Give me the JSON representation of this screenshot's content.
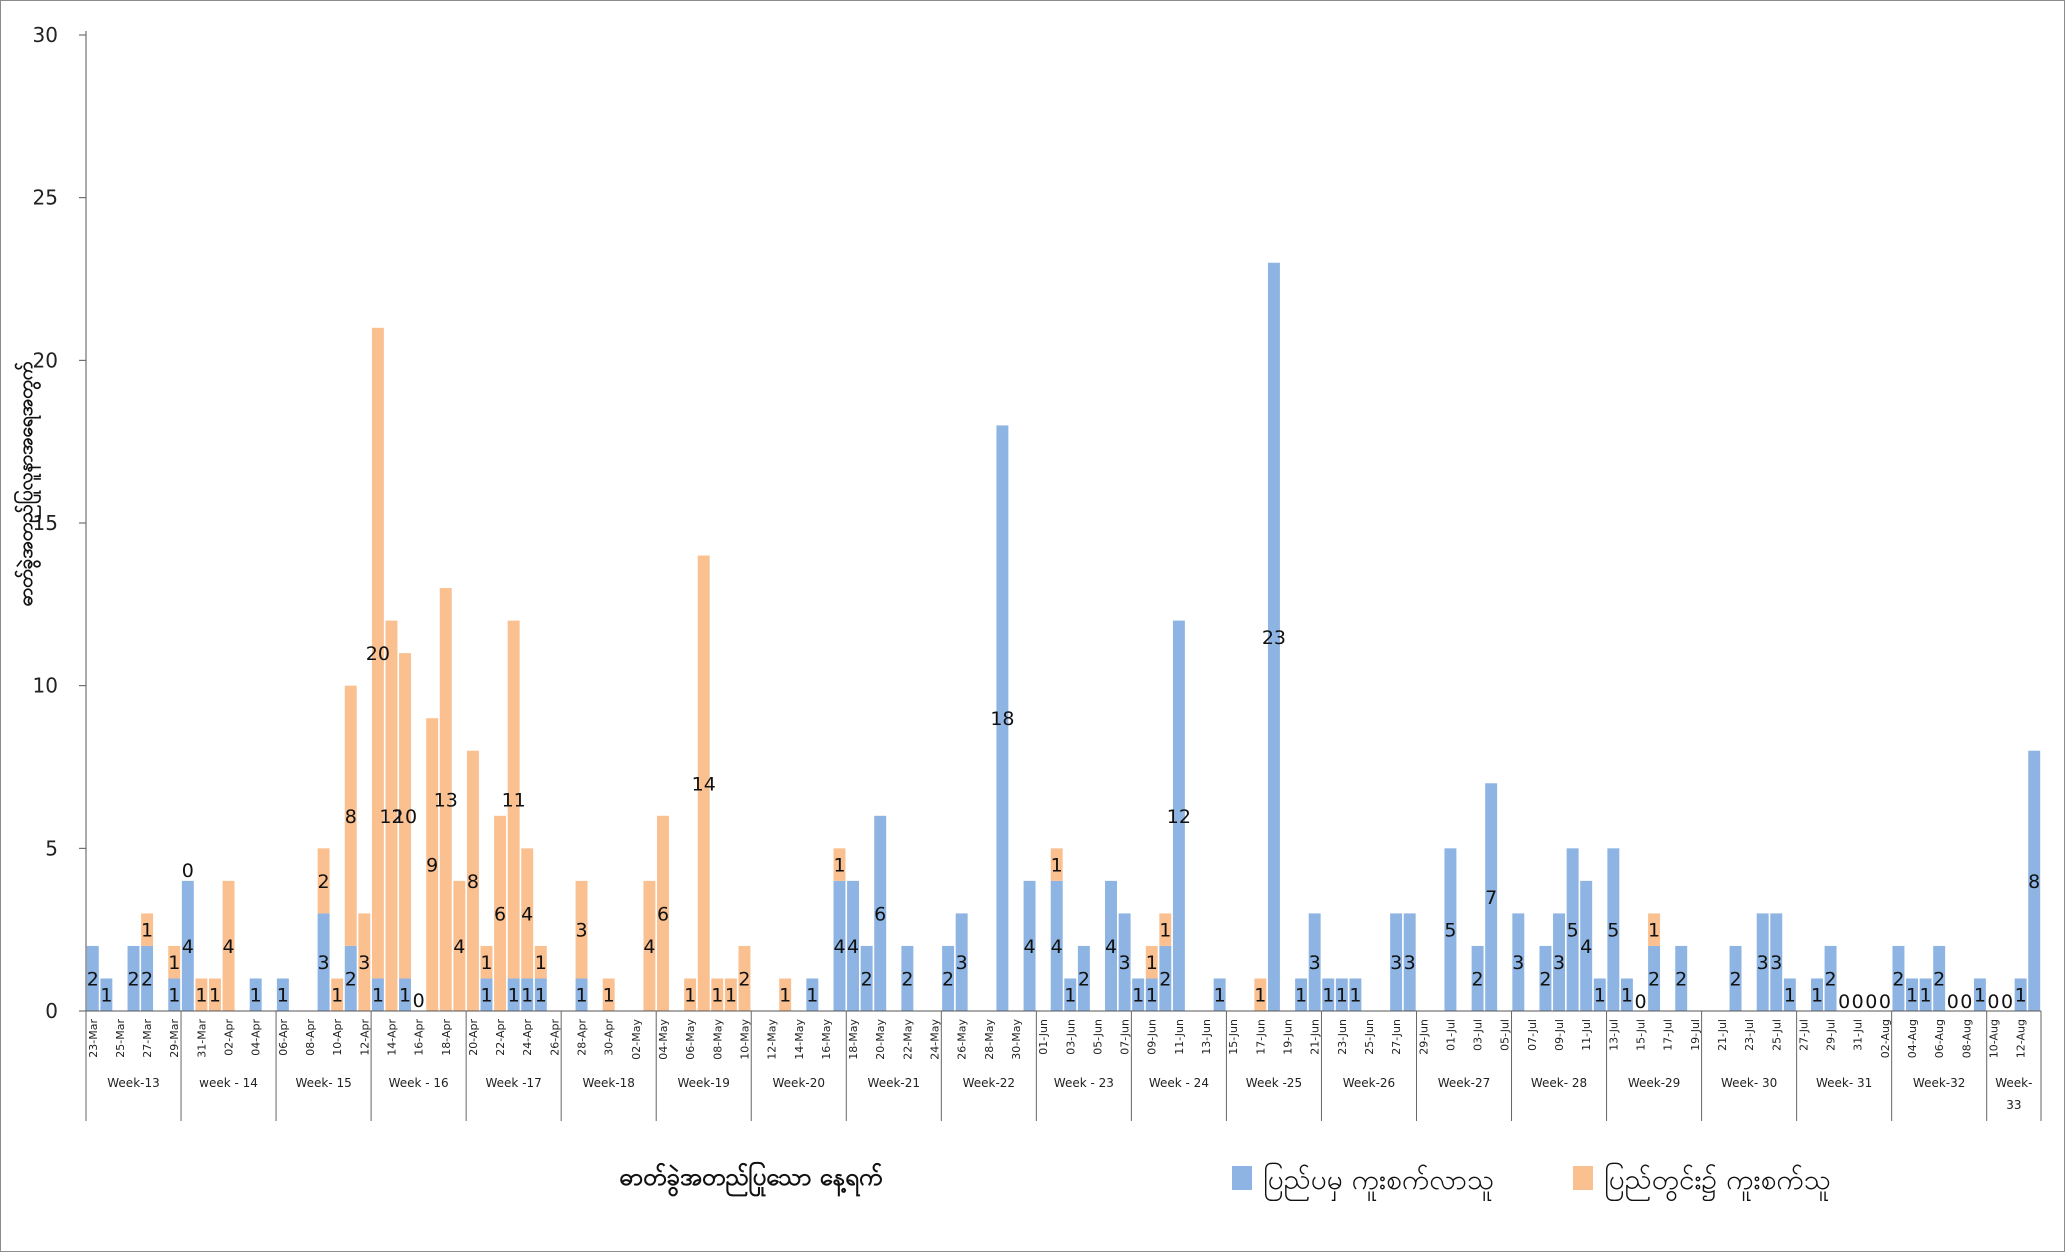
{
  "chart_data": {
    "type": "bar",
    "stacked": true,
    "title": "",
    "xlabel": "ဓာတ်ခွဲအတည်ပြုသော နေ့ရက်",
    "ylabel": "ဓာတ်ခွဲအတည်ပြုလူနာအရေအတွက်",
    "ylim": [
      0,
      30
    ],
    "yticks": [
      0,
      5,
      10,
      15,
      20,
      25,
      30
    ],
    "grid": false,
    "legend_position": "bottom-right",
    "colors": {
      "imported": "#8DB4E2",
      "local": "#FAC090"
    },
    "series": [
      {
        "key": "imported",
        "name": "ပြည်ပမှ ကူးစက်လာသူ"
      },
      {
        "key": "local",
        "name": "ပြည်တွင်း၌ ကူးစက်သူ"
      }
    ],
    "start_label": "23-Mar",
    "date_labels": [
      "23-Mar",
      "25-Mar",
      "27-Mar",
      "29-Mar",
      "31-Mar",
      "02-Apr",
      "04-Apr",
      "06-Apr",
      "08-Apr",
      "10-Apr",
      "12-Apr",
      "14-Apr",
      "16-Apr",
      "18-Apr",
      "20-Apr",
      "22-Apr",
      "24-Apr",
      "26-Apr",
      "28-Apr",
      "30-Apr",
      "02-May",
      "04-May",
      "06-May",
      "08-May",
      "10-May",
      "12-May",
      "14-May",
      "16-May",
      "18-May",
      "20-May",
      "22-May",
      "24-May",
      "26-May",
      "28-May",
      "30-May",
      "01-Jun",
      "03-Jun",
      "05-Jun",
      "07-Jun",
      "09-Jun",
      "11-Jun",
      "13-Jun",
      "15-Jun",
      "17-Jun",
      "19-Jun",
      "21-Jun",
      "23-Jun",
      "25-Jun",
      "27-Jun",
      "29-Jun",
      "01-Jul",
      "03-Jul",
      "05-Jul",
      "07-Jul",
      "09-Jul",
      "11-Jul",
      "13-Jul",
      "15-Jul",
      "17-Jul",
      "19-Jul",
      "21-Jul",
      "23-Jul",
      "25-Jul",
      "27-Jul",
      "29-Jul",
      "31-Jul",
      "02-Aug",
      "04-Aug",
      "06-Aug",
      "08-Aug",
      "10-Aug",
      "12-Aug"
    ],
    "weeks": [
      {
        "label": "Week-13",
        "start": "23-Mar"
      },
      {
        "label": "week - 14",
        "start": "30-Mar"
      },
      {
        "label": "Week- 15",
        "start": "06-Apr"
      },
      {
        "label": "Week - 16",
        "start": "13-Apr"
      },
      {
        "label": "Week -17",
        "start": "20-Apr"
      },
      {
        "label": "Week-18",
        "start": "27-Apr"
      },
      {
        "label": "Week-19",
        "start": "04-May"
      },
      {
        "label": "Week-20",
        "start": "11-May"
      },
      {
        "label": "Week-21",
        "start": "18-May"
      },
      {
        "label": "Week-22",
        "start": "25-May"
      },
      {
        "label": "Week - 23",
        "start": "01-Jun"
      },
      {
        "label": "Week - 24",
        "start": "08-Jun"
      },
      {
        "label": "Week -25",
        "start": "15-Jun"
      },
      {
        "label": "Week-26",
        "start": "22-Jun"
      },
      {
        "label": "Week-27",
        "start": "29-Jun"
      },
      {
        "label": "Week- 28",
        "start": "06-Jul"
      },
      {
        "label": "Week-29",
        "start": "13-Jul"
      },
      {
        "label": "Week- 30",
        "start": "20-Jul"
      },
      {
        "label": "Week- 31",
        "start": "27-Jul"
      },
      {
        "label": "Week-32",
        "start": "03-Aug"
      },
      {
        "label": "Week-33",
        "start": "10-Aug"
      }
    ],
    "days": [
      {
        "date": "23-Mar",
        "imported": 2,
        "local": 0,
        "label": "2"
      },
      {
        "date": "24-Mar",
        "imported": 1,
        "local": 0,
        "label": "1"
      },
      {
        "date": "25-Mar",
        "imported": 0,
        "local": 0,
        "label": ""
      },
      {
        "date": "26-Mar",
        "imported": 2,
        "local": 0,
        "label": "2"
      },
      {
        "date": "27-Mar",
        "imported": 2,
        "local": 1,
        "label": "2",
        "label_local": "1"
      },
      {
        "date": "28-Mar",
        "imported": 0,
        "local": 0,
        "label": ""
      },
      {
        "date": "29-Mar",
        "imported": 1,
        "local": 1,
        "label": "1",
        "label_local": "1"
      },
      {
        "date": "30-Mar",
        "imported": 4,
        "local": 0,
        "label": "4",
        "label_local": "0"
      },
      {
        "date": "31-Mar",
        "imported": 0,
        "local": 1,
        "label": "",
        "label_local": "1"
      },
      {
        "date": "01-Apr",
        "imported": 0,
        "local": 1,
        "label": "",
        "label_local": "1"
      },
      {
        "date": "02-Apr",
        "imported": 0,
        "local": 4,
        "label": "",
        "label_local": "4"
      },
      {
        "date": "03-Apr",
        "imported": 0,
        "local": 0,
        "label": ""
      },
      {
        "date": "04-Apr",
        "imported": 1,
        "local": 0,
        "label": "1"
      },
      {
        "date": "05-Apr",
        "imported": 0,
        "local": 0,
        "label": ""
      },
      {
        "date": "06-Apr",
        "imported": 1,
        "local": 0,
        "label": "1"
      },
      {
        "date": "07-Apr",
        "imported": 0,
        "local": 0,
        "label": ""
      },
      {
        "date": "08-Apr",
        "imported": 0,
        "local": 0,
        "label": ""
      },
      {
        "date": "09-Apr",
        "imported": 3,
        "local": 2,
        "label": "3",
        "label_local": "2"
      },
      {
        "date": "10-Apr",
        "imported": 0,
        "local": 1,
        "label": "",
        "label_local": "1"
      },
      {
        "date": "11-Apr",
        "imported": 2,
        "local": 8,
        "label": "2",
        "label_local": "8"
      },
      {
        "date": "12-Apr",
        "imported": 0,
        "local": 3,
        "label": "",
        "label_local": "3"
      },
      {
        "date": "13-Apr",
        "imported": 1,
        "local": 20,
        "label": "1",
        "label_local": "20"
      },
      {
        "date": "14-Apr",
        "imported": 0,
        "local": 12,
        "label": "",
        "label_local": "12"
      },
      {
        "date": "15-Apr",
        "imported": 1,
        "local": 10,
        "label": "1",
        "label_local": "10"
      },
      {
        "date": "16-Apr",
        "imported": 0,
        "local": 0,
        "label": "",
        "label_local": "0"
      },
      {
        "date": "17-Apr",
        "imported": 0,
        "local": 9,
        "label": "",
        "label_local": "9"
      },
      {
        "date": "18-Apr",
        "imported": 0,
        "local": 13,
        "label": "",
        "label_local": "13"
      },
      {
        "date": "19-Apr",
        "imported": 0,
        "local": 4,
        "label": "",
        "label_local": "4"
      },
      {
        "date": "20-Apr",
        "imported": 0,
        "local": 8,
        "label": "",
        "label_local": "8"
      },
      {
        "date": "21-Apr",
        "imported": 1,
        "local": 1,
        "label": "1",
        "label_local": "1"
      },
      {
        "date": "22-Apr",
        "imported": 0,
        "local": 6,
        "label": "",
        "label_local": "6"
      },
      {
        "date": "23-Apr",
        "imported": 1,
        "local": 11,
        "label": "1",
        "label_local": "11"
      },
      {
        "date": "24-Apr",
        "imported": 1,
        "local": 4,
        "label": "1",
        "label_local": "4"
      },
      {
        "date": "25-Apr",
        "imported": 1,
        "local": 1,
        "label": "1",
        "label_local": "1"
      },
      {
        "date": "26-Apr",
        "imported": 0,
        "local": 0,
        "label": ""
      },
      {
        "date": "27-Apr",
        "imported": 0,
        "local": 0,
        "label": ""
      },
      {
        "date": "28-Apr",
        "imported": 1,
        "local": 3,
        "label": "1",
        "label_local": "3"
      },
      {
        "date": "29-Apr",
        "imported": 0,
        "local": 0,
        "label": ""
      },
      {
        "date": "30-Apr",
        "imported": 0,
        "local": 1,
        "label": "",
        "label_local": "1"
      },
      {
        "date": "01-May",
        "imported": 0,
        "local": 0,
        "label": ""
      },
      {
        "date": "02-May",
        "imported": 0,
        "local": 0,
        "label": ""
      },
      {
        "date": "03-May",
        "imported": 0,
        "local": 4,
        "label": "",
        "label_local": "4"
      },
      {
        "date": "04-May",
        "imported": 0,
        "local": 6,
        "label": "",
        "label_local": "6"
      },
      {
        "date": "05-May",
        "imported": 0,
        "local": 0,
        "label": ""
      },
      {
        "date": "06-May",
        "imported": 0,
        "local": 1,
        "label": "",
        "label_local": "1"
      },
      {
        "date": "07-May",
        "imported": 0,
        "local": 14,
        "label": "",
        "label_local": "14"
      },
      {
        "date": "08-May",
        "imported": 0,
        "local": 1,
        "label": "",
        "label_local": "1"
      },
      {
        "date": "09-May",
        "imported": 0,
        "local": 1,
        "label": "",
        "label_local": "1"
      },
      {
        "date": "10-May",
        "imported": 0,
        "local": 2,
        "label": "",
        "label_local": "2"
      },
      {
        "date": "11-May",
        "imported": 0,
        "local": 0,
        "label": ""
      },
      {
        "date": "12-May",
        "imported": 0,
        "local": 0,
        "label": ""
      },
      {
        "date": "13-May",
        "imported": 0,
        "local": 1,
        "label": "",
        "label_local": "1"
      },
      {
        "date": "14-May",
        "imported": 0,
        "local": 0,
        "label": ""
      },
      {
        "date": "15-May",
        "imported": 1,
        "local": 0,
        "label": "1"
      },
      {
        "date": "16-May",
        "imported": 0,
        "local": 0,
        "label": ""
      },
      {
        "date": "17-May",
        "imported": 4,
        "local": 1,
        "label": "4",
        "label_local": "1"
      },
      {
        "date": "18-May",
        "imported": 4,
        "local": 0,
        "label": "4"
      },
      {
        "date": "19-May",
        "imported": 2,
        "local": 0,
        "label": "2"
      },
      {
        "date": "20-May",
        "imported": 6,
        "local": 0,
        "label": "6"
      },
      {
        "date": "21-May",
        "imported": 0,
        "local": 0,
        "label": ""
      },
      {
        "date": "22-May",
        "imported": 2,
        "local": 0,
        "label": "2"
      },
      {
        "date": "23-May",
        "imported": 0,
        "local": 0,
        "label": ""
      },
      {
        "date": "24-May",
        "imported": 0,
        "local": 0,
        "label": ""
      },
      {
        "date": "25-May",
        "imported": 2,
        "local": 0,
        "label": "2"
      },
      {
        "date": "26-May",
        "imported": 3,
        "local": 0,
        "label": "3"
      },
      {
        "date": "27-May",
        "imported": 0,
        "local": 0,
        "label": ""
      },
      {
        "date": "28-May",
        "imported": 0,
        "local": 0,
        "label": ""
      },
      {
        "date": "29-May",
        "imported": 18,
        "local": 0,
        "label": "18"
      },
      {
        "date": "30-May",
        "imported": 0,
        "local": 0,
        "label": ""
      },
      {
        "date": "31-May",
        "imported": 4,
        "local": 0,
        "label": "4"
      },
      {
        "date": "01-Jun",
        "imported": 0,
        "local": 0,
        "label": ""
      },
      {
        "date": "02-Jun",
        "imported": 4,
        "local": 1,
        "label": "4",
        "label_local": "1"
      },
      {
        "date": "03-Jun",
        "imported": 1,
        "local": 0,
        "label": "1"
      },
      {
        "date": "04-Jun",
        "imported": 2,
        "local": 0,
        "label": "2"
      },
      {
        "date": "05-Jun",
        "imported": 0,
        "local": 0,
        "label": ""
      },
      {
        "date": "06-Jun",
        "imported": 4,
        "local": 0,
        "label": "4"
      },
      {
        "date": "07-Jun",
        "imported": 3,
        "local": 0,
        "label": "3"
      },
      {
        "date": "08-Jun",
        "imported": 1,
        "local": 0,
        "label": "1"
      },
      {
        "date": "09-Jun",
        "imported": 1,
        "local": 1,
        "label": "1",
        "label_local": "1"
      },
      {
        "date": "10-Jun",
        "imported": 2,
        "local": 1,
        "label": "2",
        "label_local": "1"
      },
      {
        "date": "11-Jun",
        "imported": 12,
        "local": 0,
        "label": "12"
      },
      {
        "date": "12-Jun",
        "imported": 0,
        "local": 0,
        "label": ""
      },
      {
        "date": "13-Jun",
        "imported": 0,
        "local": 0,
        "label": ""
      },
      {
        "date": "14-Jun",
        "imported": 1,
        "local": 0,
        "label": "1"
      },
      {
        "date": "15-Jun",
        "imported": 0,
        "local": 0,
        "label": ""
      },
      {
        "date": "16-Jun",
        "imported": 0,
        "local": 0,
        "label": ""
      },
      {
        "date": "17-Jun",
        "imported": 0,
        "local": 1,
        "label": "",
        "label_local": "1"
      },
      {
        "date": "18-Jun",
        "imported": 23,
        "local": 0,
        "label": "23"
      },
      {
        "date": "19-Jun",
        "imported": 0,
        "local": 0,
        "label": ""
      },
      {
        "date": "20-Jun",
        "imported": 1,
        "local": 0,
        "label": "1"
      },
      {
        "date": "21-Jun",
        "imported": 3,
        "local": 0,
        "label": "3"
      },
      {
        "date": "22-Jun",
        "imported": 1,
        "local": 0,
        "label": "1"
      },
      {
        "date": "23-Jun",
        "imported": 1,
        "local": 0,
        "label": "1"
      },
      {
        "date": "24-Jun",
        "imported": 1,
        "local": 0,
        "label": "1"
      },
      {
        "date": "25-Jun",
        "imported": 0,
        "local": 0,
        "label": ""
      },
      {
        "date": "26-Jun",
        "imported": 0,
        "local": 0,
        "label": ""
      },
      {
        "date": "27-Jun",
        "imported": 3,
        "local": 0,
        "label": "3"
      },
      {
        "date": "28-Jun",
        "imported": 3,
        "local": 0,
        "label": "3"
      },
      {
        "date": "29-Jun",
        "imported": 0,
        "local": 0,
        "label": ""
      },
      {
        "date": "30-Jun",
        "imported": 0,
        "local": 0,
        "label": ""
      },
      {
        "date": "01-Jul",
        "imported": 5,
        "local": 0,
        "label": "5"
      },
      {
        "date": "02-Jul",
        "imported": 0,
        "local": 0,
        "label": ""
      },
      {
        "date": "03-Jul",
        "imported": 2,
        "local": 0,
        "label": "2"
      },
      {
        "date": "04-Jul",
        "imported": 7,
        "local": 0,
        "label": "7"
      },
      {
        "date": "05-Jul",
        "imported": 0,
        "local": 0,
        "label": ""
      },
      {
        "date": "06-Jul",
        "imported": 3,
        "local": 0,
        "label": "3"
      },
      {
        "date": "07-Jul",
        "imported": 0,
        "local": 0,
        "label": ""
      },
      {
        "date": "08-Jul",
        "imported": 2,
        "local": 0,
        "label": "2"
      },
      {
        "date": "09-Jul",
        "imported": 3,
        "local": 0,
        "label": "3"
      },
      {
        "date": "10-Jul",
        "imported": 5,
        "local": 0,
        "label": "5"
      },
      {
        "date": "11-Jul",
        "imported": 4,
        "local": 0,
        "label": "4"
      },
      {
        "date": "12-Jul",
        "imported": 1,
        "local": 0,
        "label": "1"
      },
      {
        "date": "13-Jul",
        "imported": 5,
        "local": 0,
        "label": "5"
      },
      {
        "date": "14-Jul",
        "imported": 1,
        "local": 0,
        "label": "1"
      },
      {
        "date": "15-Jul",
        "imported": 0,
        "local": 0,
        "label": "0"
      },
      {
        "date": "16-Jul",
        "imported": 2,
        "local": 1,
        "label": "2",
        "label_local": "1"
      },
      {
        "date": "17-Jul",
        "imported": 0,
        "local": 0,
        "label": ""
      },
      {
        "date": "18-Jul",
        "imported": 2,
        "local": 0,
        "label": "2"
      },
      {
        "date": "19-Jul",
        "imported": 0,
        "local": 0,
        "label": ""
      },
      {
        "date": "20-Jul",
        "imported": 0,
        "local": 0,
        "label": ""
      },
      {
        "date": "21-Jul",
        "imported": 0,
        "local": 0,
        "label": ""
      },
      {
        "date": "22-Jul",
        "imported": 2,
        "local": 0,
        "label": "2"
      },
      {
        "date": "23-Jul",
        "imported": 0,
        "local": 0,
        "label": ""
      },
      {
        "date": "24-Jul",
        "imported": 3,
        "local": 0,
        "label": "3"
      },
      {
        "date": "25-Jul",
        "imported": 3,
        "local": 0,
        "label": "3"
      },
      {
        "date": "26-Jul",
        "imported": 1,
        "local": 0,
        "label": "1"
      },
      {
        "date": "27-Jul",
        "imported": 0,
        "local": 0,
        "label": ""
      },
      {
        "date": "28-Jul",
        "imported": 1,
        "local": 0,
        "label": "1"
      },
      {
        "date": "29-Jul",
        "imported": 2,
        "local": 0,
        "label": "2"
      },
      {
        "date": "30-Jul",
        "imported": 0,
        "local": 0,
        "label": "0"
      },
      {
        "date": "31-Jul",
        "imported": 0,
        "local": 0,
        "label": "0"
      },
      {
        "date": "01-Aug",
        "imported": 0,
        "local": 0,
        "label": "0"
      },
      {
        "date": "02-Aug",
        "imported": 0,
        "local": 0,
        "label": "0"
      },
      {
        "date": "03-Aug",
        "imported": 2,
        "local": 0,
        "label": "2"
      },
      {
        "date": "04-Aug",
        "imported": 1,
        "local": 0,
        "label": "1"
      },
      {
        "date": "05-Aug",
        "imported": 1,
        "local": 0,
        "label": "1"
      },
      {
        "date": "06-Aug",
        "imported": 2,
        "local": 0,
        "label": "2"
      },
      {
        "date": "07-Aug",
        "imported": 0,
        "local": 0,
        "label": "0"
      },
      {
        "date": "08-Aug",
        "imported": 0,
        "local": 0,
        "label": "0"
      },
      {
        "date": "09-Aug",
        "imported": 1,
        "local": 0,
        "label": "1"
      },
      {
        "date": "10-Aug",
        "imported": 0,
        "local": 0,
        "label": "0"
      },
      {
        "date": "11-Aug",
        "imported": 0,
        "local": 0,
        "label": "0"
      },
      {
        "date": "12-Aug",
        "imported": 1,
        "local": 0,
        "label": "1"
      },
      {
        "date": "13-Aug",
        "imported": 8,
        "local": 0,
        "label": "8"
      }
    ]
  }
}
